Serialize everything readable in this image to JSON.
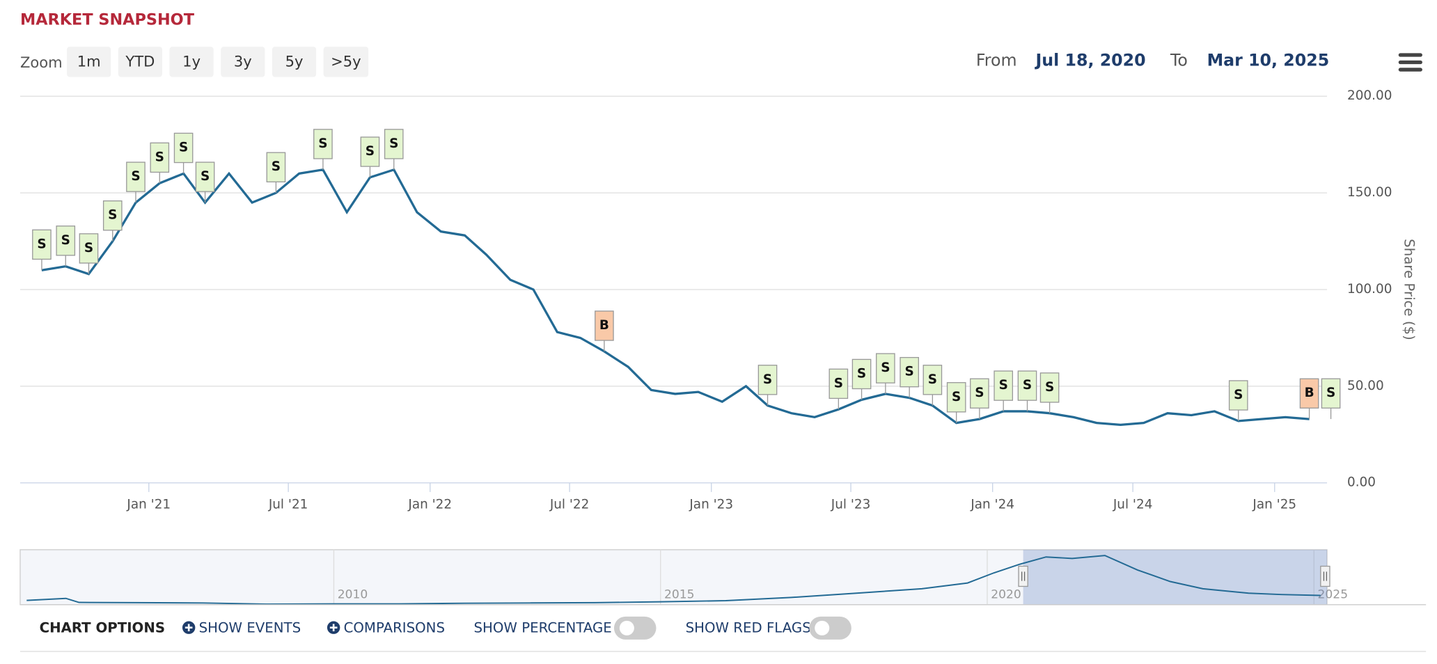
{
  "header": {
    "title": "MARKET SNAPSHOT",
    "zoom_label": "Zoom",
    "zoom_buttons": [
      "1m",
      "YTD",
      "1y",
      "3y",
      "5y",
      ">5y"
    ],
    "from_label": "From",
    "from_date": "Jul 18, 2020",
    "to_label": "To",
    "to_date": "Mar 10, 2025"
  },
  "chart_data": {
    "type": "line",
    "y_label": "Share Price ($)",
    "color": "#236a94",
    "x": [
      "2020-08",
      "2020-09",
      "2020-10",
      "2020-11",
      "2020-12",
      "2021-01",
      "2021-02",
      "2021-03",
      "2021-04",
      "2021-05",
      "2021-06",
      "2021-07",
      "2021-08",
      "2021-09",
      "2021-10",
      "2021-11",
      "2021-12",
      "2022-01",
      "2022-02",
      "2022-03",
      "2022-04",
      "2022-05",
      "2022-06",
      "2022-07",
      "2022-08",
      "2022-09",
      "2022-10",
      "2022-11",
      "2022-12",
      "2023-01",
      "2023-02",
      "2023-03",
      "2023-04",
      "2023-05",
      "2023-06",
      "2023-07",
      "2023-08",
      "2023-09",
      "2023-10",
      "2023-11",
      "2023-12",
      "2024-01",
      "2024-02",
      "2024-03",
      "2024-04",
      "2024-05",
      "2024-06",
      "2024-07",
      "2024-08",
      "2024-09",
      "2024-10",
      "2024-11",
      "2024-12",
      "2025-01",
      "2025-02"
    ],
    "values": [
      110,
      112,
      108,
      125,
      145,
      155,
      160,
      145,
      160,
      145,
      150,
      160,
      162,
      140,
      158,
      162,
      140,
      130,
      128,
      118,
      105,
      100,
      78,
      75,
      68,
      60,
      48,
      46,
      47,
      42,
      50,
      40,
      36,
      34,
      38,
      43,
      46,
      44,
      40,
      31,
      33,
      37,
      37,
      36,
      34,
      31,
      30,
      31,
      36,
      35,
      37,
      32,
      33,
      34,
      33
    ],
    "xlim": [
      "2020-07-18",
      "2025-03-10"
    ],
    "xticks": [
      {
        "value": "2021-01",
        "label": "Jan '21"
      },
      {
        "value": "2021-07",
        "label": "Jul '21"
      },
      {
        "value": "2022-01",
        "label": "Jan '22"
      },
      {
        "value": "2022-07",
        "label": "Jul '22"
      },
      {
        "value": "2023-01",
        "label": "Jan '23"
      },
      {
        "value": "2023-07",
        "label": "Jul '23"
      },
      {
        "value": "2024-01",
        "label": "Jan '24"
      },
      {
        "value": "2024-07",
        "label": "Jul '24"
      },
      {
        "value": "2025-01",
        "label": "Jan '25"
      }
    ],
    "ylim": [
      0,
      200
    ],
    "yticks": [
      {
        "value": 0,
        "label": "0.00"
      },
      {
        "value": 50,
        "label": "50.00"
      },
      {
        "value": 100,
        "label": "100.00"
      },
      {
        "value": 150,
        "label": "150.00"
      },
      {
        "value": 200,
        "label": "200.00"
      }
    ],
    "grid": true,
    "flags": [
      {
        "x": "2020-08",
        "label": "S"
      },
      {
        "x": "2020-09",
        "label": "S"
      },
      {
        "x": "2020-10",
        "label": "S"
      },
      {
        "x": "2020-11",
        "label": "S"
      },
      {
        "x": "2020-12",
        "label": "S"
      },
      {
        "x": "2021-01",
        "label": "S"
      },
      {
        "x": "2021-02",
        "label": "S"
      },
      {
        "x": "2021-03",
        "label": "S"
      },
      {
        "x": "2021-06",
        "label": "S"
      },
      {
        "x": "2021-08",
        "label": "S"
      },
      {
        "x": "2021-10",
        "label": "S"
      },
      {
        "x": "2021-11",
        "label": "S"
      },
      {
        "x": "2022-08",
        "label": "B"
      },
      {
        "x": "2023-03",
        "label": "S"
      },
      {
        "x": "2023-06",
        "label": "S"
      },
      {
        "x": "2023-07",
        "label": "S"
      },
      {
        "x": "2023-08",
        "label": "S"
      },
      {
        "x": "2023-09",
        "label": "S"
      },
      {
        "x": "2023-10",
        "label": "S"
      },
      {
        "x": "2023-11",
        "label": "S"
      },
      {
        "x": "2023-12",
        "label": "S"
      },
      {
        "x": "2024-01",
        "label": "S"
      },
      {
        "x": "2024-02",
        "label": "S"
      },
      {
        "x": "2024-03",
        "label": "S"
      },
      {
        "x": "2024-11",
        "label": "S"
      },
      {
        "x": "2025-02",
        "label": "B"
      },
      {
        "x": "2025-03",
        "label": "S"
      }
    ]
  },
  "navigator": {
    "x": [
      2005.3,
      2005.9,
      2006.1,
      2007,
      2008,
      2009,
      2010,
      2011,
      2012,
      2013,
      2014,
      2015,
      2016,
      2017,
      2018,
      2019,
      2019.7,
      2020.1,
      2020.5,
      2020.9,
      2021.3,
      2021.8,
      2022.3,
      2022.8,
      2023.3,
      2024,
      2024.5,
      2025.1
    ],
    "values": [
      15,
      22,
      8,
      7,
      6,
      2,
      3,
      3,
      5,
      6,
      7,
      10,
      14,
      25,
      40,
      55,
      75,
      110,
      140,
      165,
      160,
      170,
      120,
      80,
      55,
      40,
      35,
      32
    ],
    "xlim": [
      2005.2,
      2025.2
    ],
    "ylim": [
      0,
      190
    ],
    "xticks": [
      2010,
      2015,
      2020,
      2025
    ],
    "selection": [
      2020.55,
      2025.2
    ]
  },
  "options": {
    "title": "CHART OPTIONS",
    "show_events": "SHOW EVENTS",
    "comparisons": "COMPARISONS",
    "show_percentage": "SHOW PERCENTAGE",
    "show_red_flags": "SHOW RED FLAGS"
  }
}
